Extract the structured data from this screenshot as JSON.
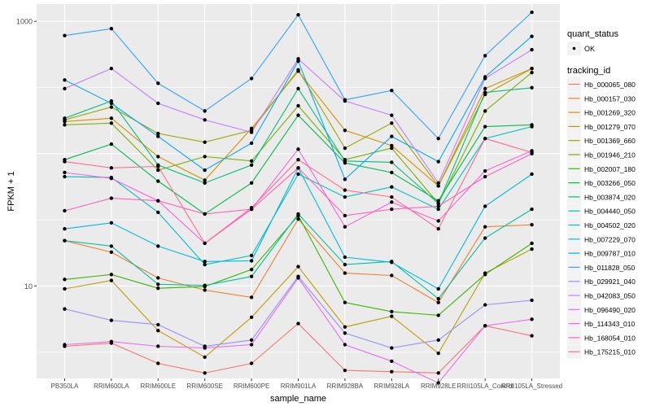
{
  "chart_data": {
    "type": "line",
    "title": "",
    "xlabel": "sample_name",
    "ylabel": "FPKM + 1",
    "yscale": "log10",
    "ylim": [
      2.0,
      1350
    ],
    "yticks": [
      10,
      1000
    ],
    "ytick_labels": [
      "10",
      "1000"
    ],
    "grid": true,
    "legend_position": "right",
    "categories": [
      "PB350LA",
      "RRIM600LA",
      "RRIM600LE",
      "RRIM600SE",
      "RRIM600PE",
      "RRIM901LA",
      "RRIM928BA",
      "RRIM928LA",
      "RRIM928LE",
      "RRII105LA_Control",
      "RRII105LA_Stressed"
    ],
    "shape_legend": {
      "title": "quant_status",
      "items": [
        {
          "label": "OK"
        }
      ]
    },
    "color_legend_title": "tracking_id",
    "series": [
      {
        "name": "Hb_000065_080",
        "color": "#F8766D",
        "values": [
          3.5,
          3.7,
          2.6,
          2.2,
          2.6,
          5.2,
          2.3,
          2.25,
          2.2,
          5.0,
          4.2
        ]
      },
      {
        "name": "Hb_000157_030",
        "color": "#EA8331",
        "values": [
          22,
          18,
          11.5,
          9.3,
          8.2,
          32,
          12.5,
          12,
          7.5,
          28,
          29
        ]
      },
      {
        "name": "Hb_001269_320",
        "color": "#D89000",
        "values": [
          175,
          185,
          95,
          63,
          155,
          420,
          150,
          115,
          57,
          310,
          440
        ]
      },
      {
        "name": "Hb_001279_070",
        "color": "#C09B00",
        "values": [
          9.5,
          11,
          4.6,
          2.9,
          5.8,
          14,
          4.9,
          5.9,
          3.1,
          12.5,
          19
        ]
      },
      {
        "name": "Hb_001369_660",
        "color": "#A3A500",
        "values": [
          180,
          225,
          142,
          122,
          150,
          430,
          110,
          170,
          57,
          280,
          440
        ]
      },
      {
        "name": "Hb_001946_210",
        "color": "#7CAE00",
        "values": [
          165,
          170,
          75,
          95,
          88,
          230,
          90,
          110,
          42,
          210,
          410
        ]
      },
      {
        "name": "Hb_002007_180",
        "color": "#39B600",
        "values": [
          11.2,
          12.2,
          9.6,
          9.9,
          13.3,
          34,
          7.5,
          6.4,
          6.0,
          12.2,
          21
        ]
      },
      {
        "name": "Hb_003266_050",
        "color": "#00BB4E",
        "values": [
          90,
          118,
          62,
          35,
          60,
          195,
          85,
          72,
          44,
          160,
          165
        ]
      },
      {
        "name": "Hb_003874_020",
        "color": "#00BF7D",
        "values": [
          185,
          250,
          82,
          60,
          82,
          310,
          88,
          86,
          42,
          290,
          315
        ]
      },
      {
        "name": "Hb_004440_050",
        "color": "#00C1A3",
        "values": [
          22,
          20,
          10.3,
          10.1,
          11.8,
          35,
          14.5,
          15.3,
          8.0,
          23,
          38
        ]
      },
      {
        "name": "Hb_004502_020",
        "color": "#00BFC4",
        "values": [
          67,
          66,
          36,
          14.5,
          17,
          70,
          47,
          56,
          38,
          130,
          160
        ]
      },
      {
        "name": "Hb_007229_070",
        "color": "#00BAE0",
        "values": [
          27,
          30,
          20,
          15.3,
          15.5,
          78,
          16.5,
          15.1,
          9.5,
          40,
          70
        ]
      },
      {
        "name": "Hb_009787_010",
        "color": "#00A9FF",
        "values": [
          360,
          240,
          135,
          75,
          120,
          500,
          64,
          135,
          87,
          380,
          770
        ]
      },
      {
        "name": "Hb_011828_050",
        "color": "#35A2FF",
        "values": [
          780,
          880,
          340,
          210,
          370,
          1120,
          255,
          300,
          130,
          550,
          1170
        ]
      },
      {
        "name": "Hb_029921_040",
        "color": "#9590FF",
        "values": [
          6.7,
          5.5,
          5.1,
          3.5,
          3.9,
          11.8,
          4.4,
          3.4,
          3.9,
          7.2,
          7.8
        ]
      },
      {
        "name": "Hb_042083_050",
        "color": "#C77CFF",
        "values": [
          310,
          440,
          240,
          180,
          145,
          520,
          250,
          195,
          60,
          370,
          610
        ]
      },
      {
        "name": "Hb_096490_020",
        "color": "#E76BF3",
        "values": [
          3.6,
          3.8,
          3.5,
          3.4,
          3.6,
          11.5,
          3.6,
          2.7,
          1.85,
          5.0,
          5.6
        ]
      },
      {
        "name": "Hb_114343_010",
        "color": "#FA62DB",
        "values": [
          72,
          65,
          44,
          21,
          38,
          108,
          28,
          43,
          31,
          74,
          105
        ]
      },
      {
        "name": "Hb_168054_010",
        "color": "#FF62BC",
        "values": [
          37,
          46,
          44,
          35,
          38,
          78,
          34,
          38,
          40,
          67,
          100
        ]
      },
      {
        "name": "Hb_175215_010",
        "color": "#FF6C91",
        "values": [
          87,
          78,
          80,
          21,
          39,
          90,
          53,
          47,
          27,
          130,
          102
        ]
      }
    ]
  }
}
